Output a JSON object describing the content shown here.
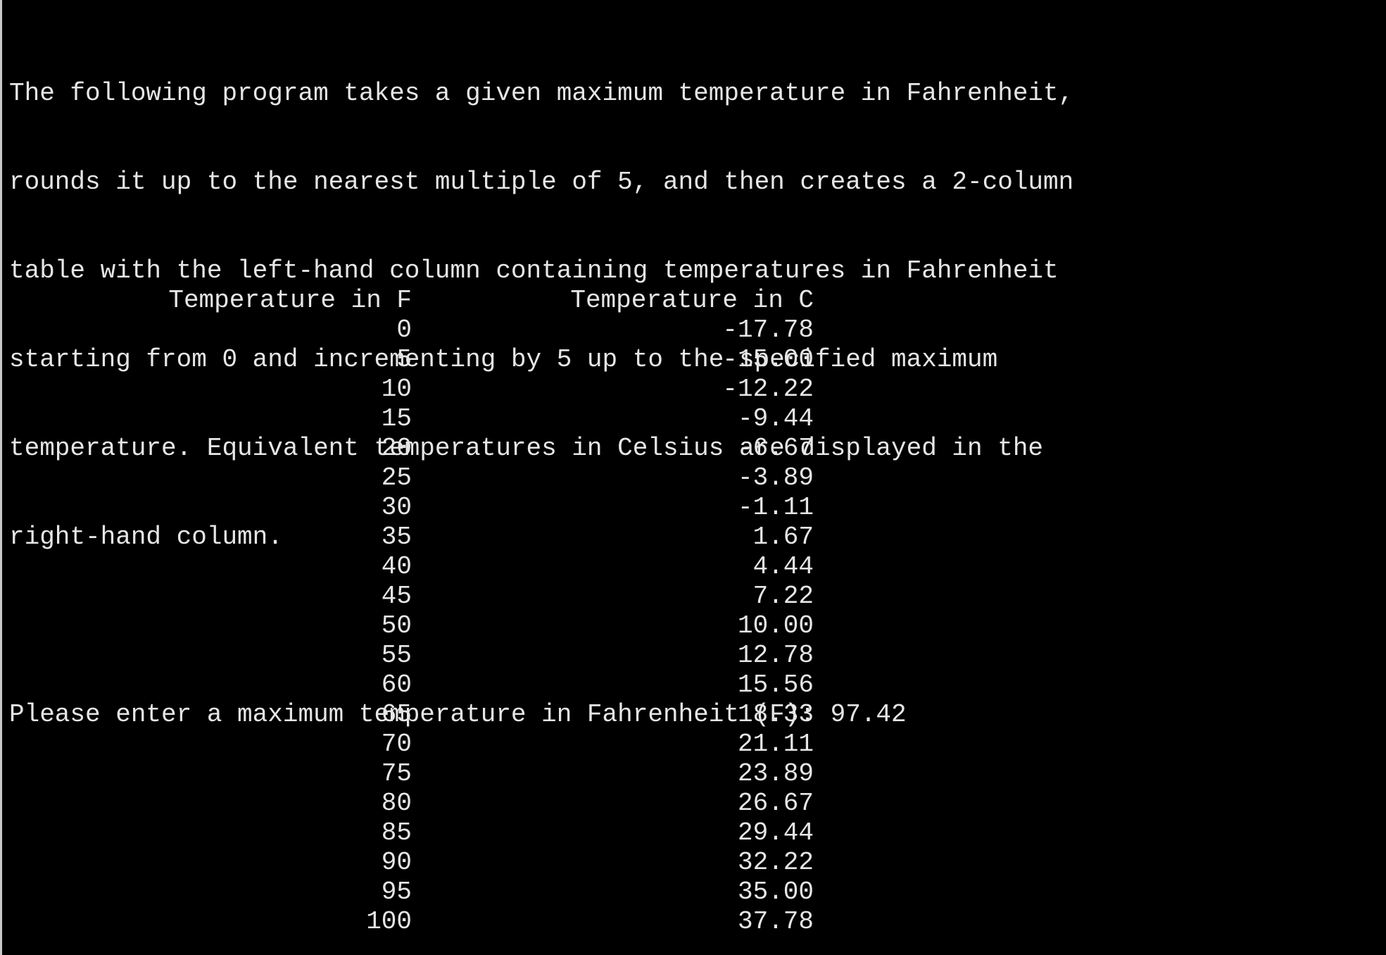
{
  "console": {
    "intro_lines": [
      "The following program takes a given maximum temperature in Fahrenheit,",
      "rounds it up to the nearest multiple of 5, and then creates a 2-column",
      "table with the left-hand column containing temperatures in Fahrenheit",
      "starting from 0 and incrementing by 5 up to the specified maximum",
      "temperature. Equivalent temperatures in Celsius are displayed in the",
      "right-hand column."
    ],
    "prompt": "Please enter a maximum temperature in Fahrenheit (F): 97.42",
    "colors": {
      "background": "#000000",
      "text": "#e6e6e6"
    }
  },
  "table": {
    "header_f": "Temperature in F",
    "header_c": "Temperature in C",
    "rows": [
      {
        "f": "0",
        "c": "-17.78"
      },
      {
        "f": "5",
        "c": "-15.00"
      },
      {
        "f": "10",
        "c": "-12.22"
      },
      {
        "f": "15",
        "c": "-9.44"
      },
      {
        "f": "20",
        "c": "-6.67"
      },
      {
        "f": "25",
        "c": "-3.89"
      },
      {
        "f": "30",
        "c": "-1.11"
      },
      {
        "f": "35",
        "c": "1.67"
      },
      {
        "f": "40",
        "c": "4.44"
      },
      {
        "f": "45",
        "c": "7.22"
      },
      {
        "f": "50",
        "c": "10.00"
      },
      {
        "f": "55",
        "c": "12.78"
      },
      {
        "f": "60",
        "c": "15.56"
      },
      {
        "f": "65",
        "c": "18.33"
      },
      {
        "f": "70",
        "c": "21.11"
      },
      {
        "f": "75",
        "c": "23.89"
      },
      {
        "f": "80",
        "c": "26.67"
      },
      {
        "f": "85",
        "c": "29.44"
      },
      {
        "f": "90",
        "c": "32.22"
      },
      {
        "f": "95",
        "c": "35.00"
      },
      {
        "f": "100",
        "c": "37.78"
      }
    ]
  }
}
